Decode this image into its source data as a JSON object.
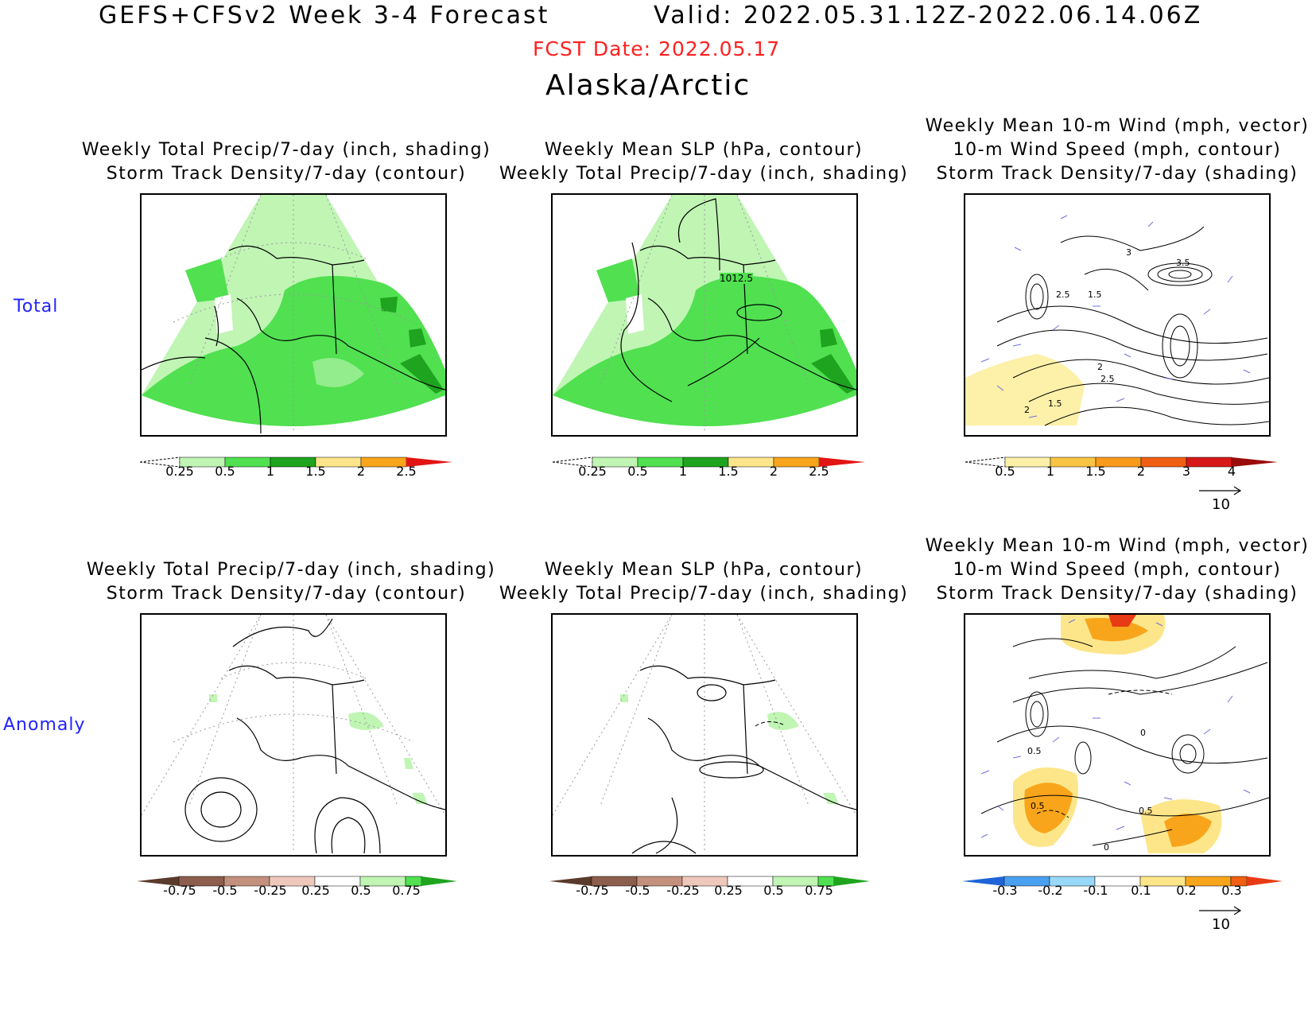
{
  "header": {
    "title": "GEFS+CFSv2 Week 3-4 Forecast",
    "valid": "Valid: 2022.05.31.12Z-2022.06.14.06Z",
    "fcst_date": "FCST Date: 2022.05.17",
    "region": "Alaska/Arctic"
  },
  "rows": {
    "total": "Total",
    "anomaly": "Anomaly"
  },
  "titles": {
    "precip_storm": [
      "Weekly Total Precip/7-day (inch, shading)",
      "Storm Track Density/7-day (contour)"
    ],
    "slp_precip": [
      "Weekly Mean SLP (hPa, contour)",
      "Weekly Total Precip/7-day (inch, shading)"
    ],
    "wind": [
      "Weekly Mean 10-m Wind (mph, vector)",
      "10-m Wind Speed (mph, contour)",
      "Storm Track Density/7-day (shading)"
    ]
  },
  "colorbars": {
    "precip_total": {
      "ticks": [
        "0.25",
        "0.5",
        "1",
        "1.5",
        "2",
        "2.5"
      ],
      "colors": [
        "#c0f5b4",
        "#50e050",
        "#1ea41e",
        "#fde68a",
        "#f9a51b",
        "#e21414"
      ]
    },
    "storm_total": {
      "ticks": [
        "0.5",
        "1",
        "1.5",
        "2",
        "3",
        "4"
      ],
      "colors": [
        "#fdf0a8",
        "#f9c443",
        "#f99a1b",
        "#f05f12",
        "#d81818",
        "#9a0c0c"
      ]
    },
    "precip_anom": {
      "ticks": [
        "-0.75",
        "-0.5",
        "-0.25",
        "0.25",
        "0.5",
        "0.75"
      ],
      "colors": [
        "#5a3a2a",
        "#8c5e4e",
        "#c4907e",
        "#efc8bc",
        "#ffffff",
        "#c0f5b4",
        "#50e050",
        "#1ea41e"
      ]
    },
    "storm_anom": {
      "ticks": [
        "-0.3",
        "-0.2",
        "-0.1",
        "0.1",
        "0.2",
        "0.3"
      ],
      "colors": [
        "#1e64d8",
        "#4aa0f0",
        "#98d8f8",
        "#ffffff",
        "#fde68a",
        "#f9a51b",
        "#e83a14"
      ]
    }
  },
  "contour_labels": {
    "slp_total": "1012.5",
    "wind_total": [
      "3",
      "3.5",
      "2.5",
      "1.5",
      "2",
      "1.5",
      "2",
      "2.5"
    ],
    "wind_anom": [
      "0.5",
      "0.5",
      "0.5",
      "0",
      "0"
    ]
  },
  "vector_ref": "10",
  "colors": {
    "land_line": "#000000",
    "vector": "#7070e0",
    "row_label": "#2222ff",
    "date": "#ff2020"
  }
}
